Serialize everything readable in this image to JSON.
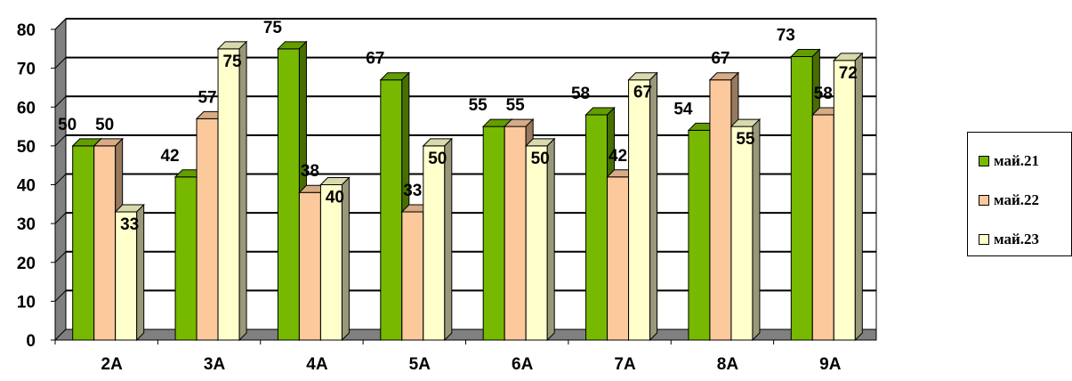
{
  "chart_data": {
    "type": "bar",
    "style": "3d-clustered-column",
    "categories": [
      "2А",
      "3А",
      "4А",
      "5А",
      "6А",
      "7А",
      "8А",
      "9А"
    ],
    "series": [
      {
        "name": "май.21",
        "color": "#76b900",
        "values": [
          50,
          42,
          75,
          67,
          55,
          58,
          54,
          73
        ]
      },
      {
        "name": "май.22",
        "color": "#fcc99c",
        "values": [
          50,
          57,
          38,
          33,
          55,
          42,
          67,
          58
        ]
      },
      {
        "name": "май.23",
        "color": "#ffffcc",
        "values": [
          33,
          75,
          40,
          50,
          50,
          67,
          55,
          72
        ]
      }
    ],
    "ylim": [
      0,
      80
    ],
    "yticks": [
      "0",
      "10",
      "20",
      "30",
      "40",
      "50",
      "60",
      "70",
      "80"
    ],
    "grid": true,
    "legend": "right",
    "data_labels": true
  }
}
